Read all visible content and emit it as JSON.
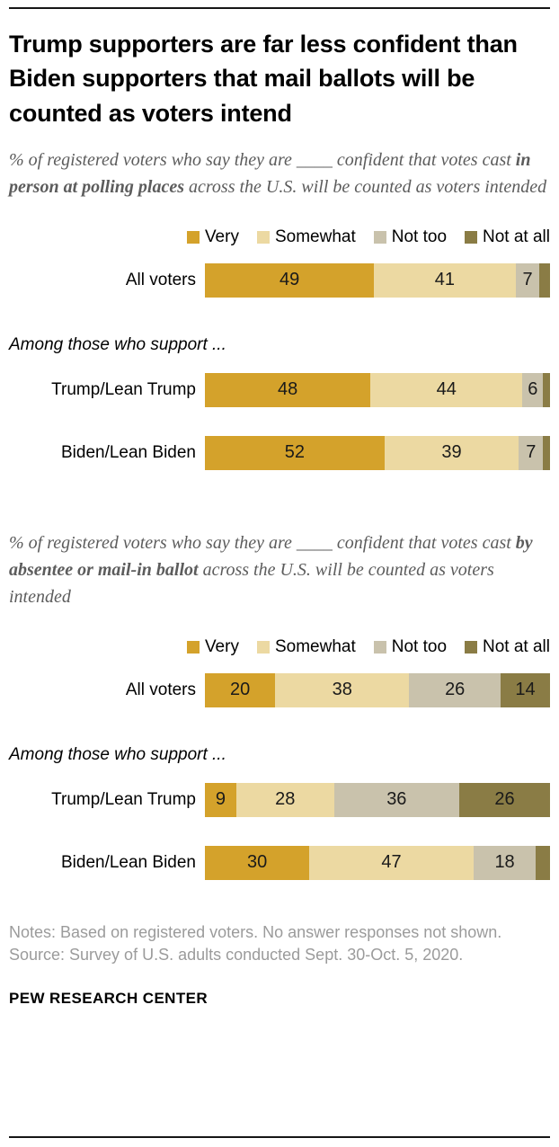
{
  "title": "Trump supporters are far less confident than Biden supporters that mail ballots will be counted as voters intend",
  "colors": {
    "palette": [
      "#d4a22b",
      "#ecd9a2",
      "#c9c2ac",
      "#8a7c45"
    ],
    "title_text": "#000000",
    "subtitle_text": "#5c5c5c",
    "notes_text": "#9b9b9b"
  },
  "chart_data": [
    {
      "type": "bar",
      "stacked": true,
      "orientation": "horizontal",
      "subtitle_prefix": "% of registered voters who say they are ____ confident that votes cast ",
      "subtitle_bold": "in person at polling places",
      "subtitle_suffix": " across the U.S. will be counted as voters intended",
      "legend": [
        "Very",
        "Somewhat",
        "Not too",
        "Not at all"
      ],
      "legend_position": "top",
      "section_label": "Among those who support ...",
      "categories": [
        "All voters",
        "Trump/Lean Trump",
        "Biden/Lean Biden"
      ],
      "series": [
        {
          "name": "Very",
          "values": [
            49,
            48,
            52
          ]
        },
        {
          "name": "Somewhat",
          "values": [
            41,
            44,
            39
          ]
        },
        {
          "name": "Not too",
          "values": [
            7,
            6,
            7
          ]
        },
        {
          "name": "Not at all",
          "values": [
            3,
            2,
            2
          ]
        }
      ],
      "labels_shown": [
        [
          true,
          true,
          true,
          false
        ],
        [
          true,
          true,
          true,
          false
        ],
        [
          true,
          true,
          true,
          false
        ]
      ],
      "xlim": [
        0,
        100
      ]
    },
    {
      "type": "bar",
      "stacked": true,
      "orientation": "horizontal",
      "subtitle_prefix": "% of registered voters who say they are ____ confident that votes cast ",
      "subtitle_bold": "by absentee or mail-in ballot",
      "subtitle_suffix": " across the U.S. will be counted as voters intended",
      "legend": [
        "Very",
        "Somewhat",
        "Not too",
        "Not at all"
      ],
      "legend_position": "top",
      "section_label": "Among those who support ...",
      "categories": [
        "All voters",
        "Trump/Lean Trump",
        "Biden/Lean Biden"
      ],
      "series": [
        {
          "name": "Very",
          "values": [
            20,
            9,
            30
          ]
        },
        {
          "name": "Somewhat",
          "values": [
            38,
            28,
            47
          ]
        },
        {
          "name": "Not too",
          "values": [
            26,
            36,
            18
          ]
        },
        {
          "name": "Not at all",
          "values": [
            14,
            26,
            4
          ]
        }
      ],
      "labels_shown": [
        [
          true,
          true,
          true,
          true
        ],
        [
          true,
          true,
          true,
          true
        ],
        [
          true,
          true,
          true,
          false
        ]
      ],
      "xlim": [
        0,
        100
      ]
    }
  ],
  "notes": {
    "line1": "Notes: Based on registered voters. No answer responses not shown.",
    "line2": "Source: Survey of U.S. adults conducted Sept. 30-Oct. 5, 2020."
  },
  "brand": "PEW RESEARCH CENTER"
}
